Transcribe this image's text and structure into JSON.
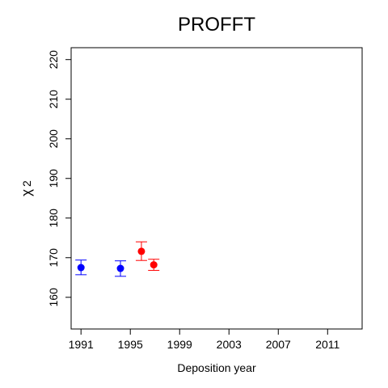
{
  "chart_data": {
    "type": "scatter",
    "title": "PROFFT",
    "xlabel": "Deposition year",
    "ylabel_base": "χ",
    "ylabel_sup": "2",
    "xlim": [
      1990.2,
      2013.8
    ],
    "ylim": [
      152.0,
      223.0
    ],
    "x_ticks": [
      1991,
      1995,
      1999,
      2003,
      2007,
      2011
    ],
    "y_ticks": [
      160,
      170,
      180,
      190,
      200,
      210,
      220
    ],
    "grid": false,
    "legend": "none",
    "series": [
      {
        "color": "#0000ff",
        "points": [
          {
            "x": 1991.0,
            "y": 167.5,
            "err_low": 165.7,
            "err_high": 169.4
          },
          {
            "x": 1994.2,
            "y": 167.3,
            "err_low": 165.3,
            "err_high": 169.2
          }
        ]
      },
      {
        "color": "#ff0000",
        "points": [
          {
            "x": 1995.9,
            "y": 171.6,
            "err_low": 169.3,
            "err_high": 174.0
          },
          {
            "x": 1996.9,
            "y": 168.2,
            "err_low": 166.8,
            "err_high": 169.6
          }
        ]
      }
    ]
  }
}
